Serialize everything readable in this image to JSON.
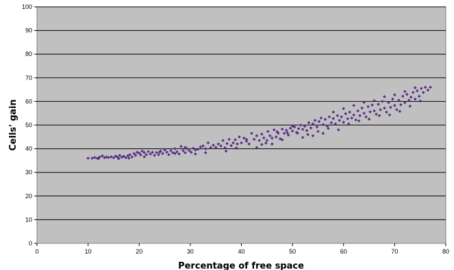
{
  "chart_data": {
    "type": "scatter",
    "title": "",
    "xlabel": "Percentage of free space",
    "ylabel": "Cells' gain",
    "xlim": [
      0,
      80
    ],
    "ylim": [
      0,
      100
    ],
    "x_ticks": [
      "0",
      "10",
      "20",
      "30",
      "40",
      "50",
      "60",
      "70",
      "80"
    ],
    "y_ticks": [
      "0",
      "10",
      "20",
      "30",
      "40",
      "50",
      "60",
      "70",
      "80",
      "90",
      "100"
    ],
    "grid": "horizontal",
    "plot_background": "#c0c0c0",
    "gridline_color": "#000000",
    "marker": "diamond",
    "marker_color": "#5a2d8a",
    "series": [
      {
        "name": "",
        "points": [
          [
            10.0,
            36.0
          ],
          [
            10.8,
            36.0
          ],
          [
            11.3,
            36.3
          ],
          [
            11.8,
            36.0
          ],
          [
            12.3,
            36.5
          ],
          [
            12.8,
            37.0
          ],
          [
            13.2,
            36.2
          ],
          [
            13.6,
            36.5
          ],
          [
            14.0,
            36.3
          ],
          [
            14.5,
            36.6
          ],
          [
            15.0,
            36.2
          ],
          [
            15.4,
            36.9
          ],
          [
            15.8,
            36.4
          ],
          [
            16.2,
            37.2
          ],
          [
            16.6,
            36.4
          ],
          [
            17.0,
            36.8
          ],
          [
            17.4,
            36.2
          ],
          [
            17.8,
            37.0
          ],
          [
            18.2,
            37.5
          ],
          [
            18.6,
            36.5
          ],
          [
            19.0,
            38.0
          ],
          [
            19.3,
            37.2
          ],
          [
            19.6,
            38.5
          ],
          [
            20.0,
            38.2
          ],
          [
            20.3,
            37.4
          ],
          [
            20.6,
            39.0
          ],
          [
            21.0,
            38.4
          ],
          [
            21.4,
            37.5
          ],
          [
            21.8,
            38.8
          ],
          [
            22.2,
            37.8
          ],
          [
            22.6,
            38.5
          ],
          [
            23.0,
            37.2
          ],
          [
            23.4,
            38.4
          ],
          [
            23.8,
            37.5
          ],
          [
            24.2,
            39.0
          ],
          [
            24.6,
            38.0
          ],
          [
            25.0,
            39.5
          ],
          [
            25.4,
            38.6
          ],
          [
            25.8,
            37.5
          ],
          [
            26.2,
            39.2
          ],
          [
            26.6,
            38.3
          ],
          [
            27.0,
            40.0
          ],
          [
            27.4,
            38.7
          ],
          [
            27.8,
            37.8
          ],
          [
            28.2,
            41.0
          ],
          [
            28.6,
            39.2
          ],
          [
            29.0,
            38.3
          ],
          [
            29.4,
            40.0
          ],
          [
            29.8,
            39.2
          ],
          [
            30.2,
            38.5
          ],
          [
            30.6,
            40.2
          ],
          [
            31.0,
            39.5
          ],
          [
            31.5,
            39.8
          ],
          [
            32.0,
            40.8
          ],
          [
            32.5,
            41.2
          ],
          [
            33.0,
            40.0
          ],
          [
            33.5,
            42.5
          ],
          [
            34.0,
            40.5
          ],
          [
            34.5,
            41.5
          ],
          [
            35.0,
            40.6
          ],
          [
            35.5,
            42.0
          ],
          [
            36.0,
            41.2
          ],
          [
            36.4,
            43.5
          ],
          [
            36.8,
            40.4
          ],
          [
            37.2,
            42.2
          ],
          [
            37.6,
            44.0
          ],
          [
            38.0,
            41.3
          ],
          [
            38.4,
            42.5
          ],
          [
            38.8,
            43.8
          ],
          [
            39.2,
            42.0
          ],
          [
            39.6,
            45.0
          ],
          [
            40.0,
            42.5
          ],
          [
            40.5,
            44.5
          ],
          [
            41.0,
            43.2
          ],
          [
            41.5,
            42.0
          ],
          [
            42.0,
            46.5
          ],
          [
            42.5,
            44.0
          ],
          [
            43.0,
            45.5
          ],
          [
            43.5,
            43.5
          ],
          [
            44.0,
            46.2
          ],
          [
            44.4,
            44.6
          ],
          [
            44.8,
            42.4
          ],
          [
            45.2,
            47.3
          ],
          [
            45.6,
            45.5
          ],
          [
            46.0,
            44.5
          ],
          [
            46.4,
            48.0
          ],
          [
            46.8,
            45.0
          ],
          [
            47.2,
            46.6
          ],
          [
            47.6,
            44.2
          ],
          [
            48.0,
            48.3
          ],
          [
            48.4,
            46.5
          ],
          [
            48.8,
            47.8
          ],
          [
            49.2,
            45.8
          ],
          [
            49.6,
            48.7
          ],
          [
            50.0,
            47.5
          ],
          [
            50.4,
            49.2
          ],
          [
            50.8,
            46.9
          ],
          [
            51.2,
            48.5
          ],
          [
            51.6,
            50.0
          ],
          [
            52.0,
            48.2
          ],
          [
            52.4,
            49.5
          ],
          [
            52.8,
            47.7
          ],
          [
            53.2,
            51.0
          ],
          [
            53.6,
            48.8
          ],
          [
            54.0,
            50.5
          ],
          [
            54.4,
            52.0
          ],
          [
            54.8,
            49.2
          ],
          [
            55.2,
            51.5
          ],
          [
            55.6,
            53.0
          ],
          [
            56.0,
            50.2
          ],
          [
            56.4,
            52.4
          ],
          [
            56.8,
            49.6
          ],
          [
            57.2,
            53.5
          ],
          [
            57.6,
            51.0
          ],
          [
            58.0,
            52.8
          ],
          [
            58.4,
            50.5
          ],
          [
            58.8,
            54.0
          ],
          [
            59.2,
            52.0
          ],
          [
            59.6,
            53.5
          ],
          [
            60.0,
            51.2
          ],
          [
            60.4,
            54.8
          ],
          [
            60.8,
            52.7
          ],
          [
            61.2,
            55.5
          ],
          [
            61.6,
            53.0
          ],
          [
            62.0,
            54.3
          ],
          [
            62.4,
            52.2
          ],
          [
            62.8,
            56.0
          ],
          [
            63.2,
            54.0
          ],
          [
            63.6,
            57.2
          ],
          [
            64.0,
            55.0
          ],
          [
            64.4,
            53.5
          ],
          [
            64.8,
            57.8
          ],
          [
            65.2,
            55.6
          ],
          [
            65.6,
            58.5
          ],
          [
            66.0,
            56.0
          ],
          [
            66.4,
            54.6
          ],
          [
            66.8,
            58.8
          ],
          [
            67.2,
            56.5
          ],
          [
            67.6,
            60.0
          ],
          [
            68.0,
            57.2
          ],
          [
            68.4,
            55.5
          ],
          [
            68.8,
            59.5
          ],
          [
            69.2,
            57.5
          ],
          [
            69.6,
            61.0
          ],
          [
            70.0,
            58.3
          ],
          [
            70.4,
            56.5
          ],
          [
            70.8,
            60.5
          ],
          [
            71.2,
            58.6
          ],
          [
            71.6,
            62.2
          ],
          [
            72.0,
            59.5
          ],
          [
            72.4,
            63.0
          ],
          [
            72.8,
            60.5
          ],
          [
            73.2,
            61.8
          ],
          [
            73.6,
            63.8
          ],
          [
            74.0,
            61.0
          ],
          [
            74.4,
            64.5
          ],
          [
            74.8,
            62.2
          ],
          [
            75.2,
            65.5
          ],
          [
            75.6,
            63.8
          ],
          [
            76.0,
            66.0
          ],
          [
            76.5,
            64.8
          ],
          [
            77.0,
            66.0
          ],
          [
            12.0,
            35.8
          ],
          [
            16.0,
            35.8
          ],
          [
            18.0,
            36.0
          ],
          [
            21.0,
            36.6
          ],
          [
            24.0,
            38.6
          ],
          [
            27.0,
            38.0
          ],
          [
            29.0,
            40.6
          ],
          [
            31.0,
            37.8
          ],
          [
            33.0,
            38.3
          ],
          [
            37.0,
            39.0
          ],
          [
            39.0,
            40.3
          ],
          [
            41.0,
            44.0
          ],
          [
            43.0,
            40.5
          ],
          [
            46.0,
            42.0
          ],
          [
            48.0,
            43.8
          ],
          [
            51.0,
            46.6
          ],
          [
            53.0,
            46.0
          ],
          [
            55.0,
            47.3
          ],
          [
            57.0,
            48.6
          ],
          [
            59.0,
            48.0
          ],
          [
            61.0,
            50.5
          ],
          [
            63.0,
            51.8
          ],
          [
            65.0,
            52.5
          ],
          [
            67.0,
            54.0
          ],
          [
            69.0,
            54.3
          ],
          [
            71.0,
            55.8
          ],
          [
            73.0,
            58.0
          ],
          [
            75.0,
            60.2
          ],
          [
            58.0,
            55.5
          ],
          [
            60.0,
            57.0
          ],
          [
            62.0,
            58.3
          ],
          [
            64.0,
            59.6
          ],
          [
            66.0,
            60.3
          ],
          [
            68.0,
            62.0
          ],
          [
            70.0,
            62.8
          ],
          [
            72.0,
            64.2
          ],
          [
            74.0,
            65.8
          ],
          [
            56.0,
            46.5
          ],
          [
            54.0,
            45.5
          ],
          [
            52.0,
            44.8
          ],
          [
            50.0,
            49.6
          ],
          [
            49.0,
            46.8
          ],
          [
            47.0,
            47.2
          ],
          [
            45.0,
            43.5
          ],
          [
            44.0,
            41.8
          ]
        ]
      }
    ]
  }
}
